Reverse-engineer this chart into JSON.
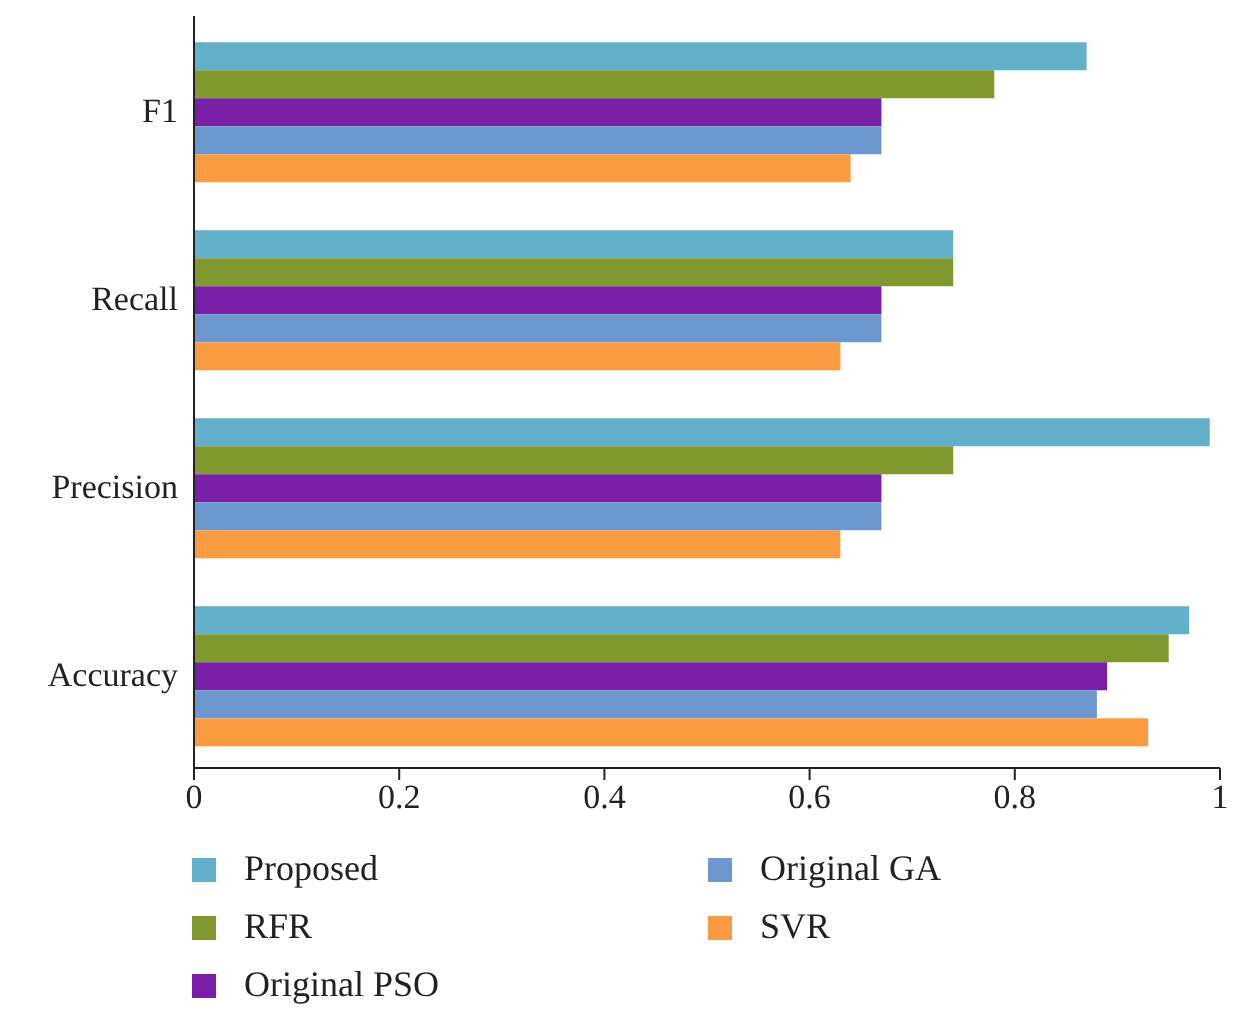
{
  "chart_data": {
    "type": "bar",
    "orientation": "horizontal",
    "categories": [
      "F1",
      "Recall",
      "Precision",
      "Accuracy"
    ],
    "series": [
      {
        "name": "Proposed",
        "color": "#63b0ca",
        "values": [
          0.87,
          0.74,
          0.99,
          0.97
        ]
      },
      {
        "name": "RFR",
        "color": "#80992e",
        "values": [
          0.78,
          0.74,
          0.74,
          0.95
        ]
      },
      {
        "name": "Original PSO",
        "color": "#7a1fa8",
        "values": [
          0.67,
          0.67,
          0.67,
          0.89
        ]
      },
      {
        "name": "Original GA",
        "color": "#6a98cf",
        "values": [
          0.67,
          0.67,
          0.67,
          0.88
        ]
      },
      {
        "name": "SVR",
        "color": "#fa9b41",
        "values": [
          0.64,
          0.63,
          0.63,
          0.93
        ]
      }
    ],
    "xlim": [
      0,
      1
    ],
    "xticks": [
      0,
      0.2,
      0.4,
      0.6,
      0.8,
      1
    ],
    "grid": false,
    "legend": "bottom"
  }
}
